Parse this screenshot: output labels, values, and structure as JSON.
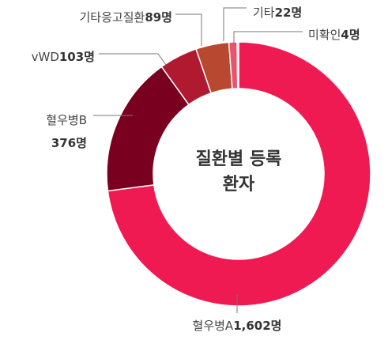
{
  "chart_data": {
    "type": "donut",
    "title": "질환별 등록환자",
    "categories": [
      "혈우병A",
      "혈우병B",
      "vWD",
      "기타응고질환",
      "기타",
      "미확인"
    ],
    "values": [
      1602,
      376,
      103,
      89,
      22,
      4
    ],
    "value_labels": [
      "1,602명",
      "376명",
      "103명",
      "89명",
      "22명",
      "4명"
    ],
    "colors": [
      "#ee1a51",
      "#7a0020",
      "#b01a30",
      "#b84830",
      "#e8546e",
      "#f6b8c0"
    ]
  }
}
